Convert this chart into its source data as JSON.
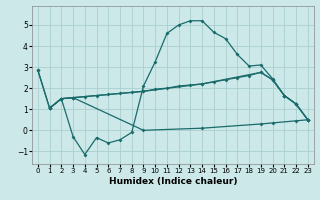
{
  "xlabel": "Humidex (Indice chaleur)",
  "xlim": [
    -0.5,
    23.5
  ],
  "ylim": [
    -1.6,
    5.9
  ],
  "bg_color": "#cce8e8",
  "grid_color": "#aacfcf",
  "line_color": "#1a6b6b",
  "yticks": [
    -1,
    0,
    1,
    2,
    3,
    4,
    5
  ],
  "xticks": [
    0,
    1,
    2,
    3,
    4,
    5,
    6,
    7,
    8,
    9,
    10,
    11,
    12,
    13,
    14,
    15,
    16,
    17,
    18,
    19,
    20,
    21,
    22,
    23
  ],
  "s1": [
    [
      0,
      2.85
    ],
    [
      1,
      1.05
    ],
    [
      2,
      1.5
    ],
    [
      3,
      -0.3
    ],
    [
      4,
      -1.15
    ],
    [
      5,
      -0.35
    ],
    [
      6,
      -0.6
    ],
    [
      7,
      -0.45
    ],
    [
      8,
      -0.1
    ],
    [
      9,
      2.1
    ],
    [
      10,
      3.25
    ],
    [
      11,
      4.6
    ],
    [
      12,
      5.0
    ],
    [
      13,
      5.2
    ],
    [
      14,
      5.2
    ],
    [
      15,
      4.65
    ],
    [
      16,
      4.35
    ],
    [
      17,
      3.6
    ],
    [
      18,
      3.05
    ],
    [
      19,
      3.1
    ],
    [
      20,
      2.45
    ],
    [
      21,
      1.65
    ],
    [
      22,
      1.25
    ],
    [
      23,
      0.5
    ]
  ],
  "s2": [
    [
      0,
      2.85
    ],
    [
      1,
      1.05
    ],
    [
      2,
      1.5
    ],
    [
      3,
      1.55
    ],
    [
      4,
      1.6
    ],
    [
      5,
      1.65
    ],
    [
      6,
      1.7
    ],
    [
      7,
      1.75
    ],
    [
      8,
      1.8
    ],
    [
      9,
      1.85
    ],
    [
      10,
      1.95
    ],
    [
      11,
      2.0
    ],
    [
      12,
      2.1
    ],
    [
      13,
      2.15
    ],
    [
      14,
      2.2
    ],
    [
      15,
      2.3
    ],
    [
      16,
      2.4
    ],
    [
      17,
      2.5
    ],
    [
      18,
      2.6
    ],
    [
      19,
      2.75
    ],
    [
      20,
      2.4
    ],
    [
      21,
      1.65
    ],
    [
      22,
      1.25
    ],
    [
      23,
      0.5
    ]
  ],
  "s3": [
    [
      1,
      1.05
    ],
    [
      2,
      1.5
    ],
    [
      3,
      1.55
    ],
    [
      9,
      1.85
    ],
    [
      14,
      2.2
    ],
    [
      19,
      2.75
    ],
    [
      20,
      2.4
    ],
    [
      21,
      1.65
    ],
    [
      22,
      1.25
    ],
    [
      23,
      0.5
    ]
  ],
  "s4": [
    [
      1,
      1.05
    ],
    [
      2,
      1.5
    ],
    [
      3,
      1.55
    ],
    [
      9,
      0.0
    ],
    [
      14,
      0.1
    ],
    [
      19,
      0.3
    ],
    [
      20,
      0.35
    ],
    [
      22,
      0.45
    ],
    [
      23,
      0.5
    ]
  ]
}
